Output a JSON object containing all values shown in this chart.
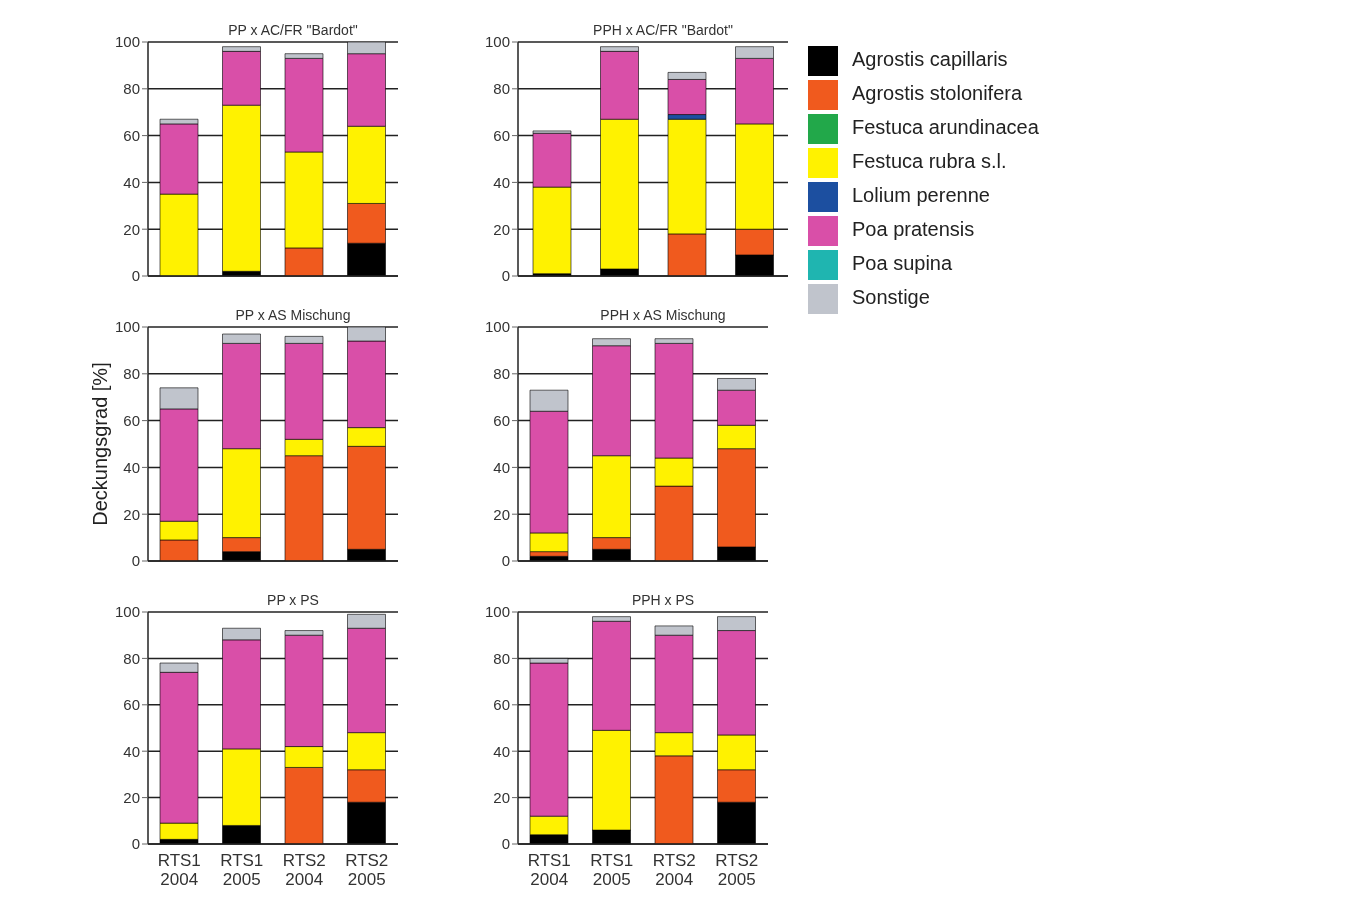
{
  "chart_data": [
    {
      "type": "bar",
      "stacked": true,
      "title": "PP x AC/FR \"Bardot\"",
      "categories": [
        null,
        null,
        null,
        null
      ],
      "ylim": [
        0,
        100
      ],
      "yticks": [
        0,
        20,
        40,
        60,
        80,
        100
      ],
      "grid": "y",
      "tick_labels": "y",
      "legend": false,
      "series": [
        {
          "color": "#000000",
          "values": [
            0,
            2,
            0,
            14
          ]
        },
        {
          "color": "#f05a1e",
          "values": [
            0,
            0,
            12,
            17
          ]
        },
        {
          "color": "#fff200",
          "values": [
            35,
            71,
            41,
            33
          ]
        },
        {
          "color": "#d94fa8",
          "values": [
            30,
            23,
            40,
            31
          ]
        },
        {
          "color": "#c0c4cc",
          "values": [
            2,
            2,
            2,
            5
          ]
        }
      ]
    },
    {
      "type": "bar",
      "stacked": true,
      "title": "PPH x AC/FR \"Bardot\"",
      "categories": [
        null,
        null,
        null,
        null
      ],
      "ylim": [
        0,
        100
      ],
      "yticks": [
        0,
        20,
        40,
        60,
        80,
        100
      ],
      "grid": "y",
      "tick_labels": "y",
      "legend": "right",
      "series": [
        {
          "name": "Agrostis capillaris",
          "color": "#000000",
          "values": [
            1,
            3,
            0,
            9
          ]
        },
        {
          "name": "Agrostis stolonifera",
          "color": "#f05a1e",
          "values": [
            0,
            0,
            18,
            11
          ]
        },
        {
          "name": "Festuca arundinacea",
          "color": "#22a84a",
          "values": [
            0,
            0,
            0,
            0
          ]
        },
        {
          "name": "Festuca rubra s.l.",
          "color": "#fff200",
          "values": [
            37,
            64,
            49,
            45
          ]
        },
        {
          "name": "Lolium perenne",
          "color": "#1c4fa0",
          "values": [
            0,
            0,
            2,
            0
          ]
        },
        {
          "name": "Poa pratensis",
          "color": "#d94fa8",
          "values": [
            23,
            29,
            15,
            28
          ]
        },
        {
          "name": "Poa supina",
          "color": "#1fb5b0",
          "values": [
            0,
            0,
            0,
            0
          ]
        },
        {
          "name": "Sonstige",
          "color": "#c0c4cc",
          "values": [
            1,
            2,
            3,
            5
          ]
        }
      ]
    },
    {
      "type": "bar",
      "stacked": true,
      "title": "PP x AS Mischung",
      "ylabel": "Deckungsgrad [%]",
      "categories": [
        null,
        null,
        null,
        null
      ],
      "ylim": [
        0,
        100
      ],
      "yticks": [
        0,
        20,
        40,
        60,
        80,
        100
      ],
      "grid": "y",
      "tick_labels": "y",
      "legend": false,
      "series": [
        {
          "color": "#000000",
          "values": [
            0,
            4,
            0,
            5
          ]
        },
        {
          "color": "#f05a1e",
          "values": [
            9,
            6,
            45,
            44
          ]
        },
        {
          "color": "#fff200",
          "values": [
            8,
            38,
            7,
            8
          ]
        },
        {
          "color": "#d94fa8",
          "values": [
            48,
            45,
            41,
            37
          ]
        },
        {
          "color": "#c0c4cc",
          "values": [
            9,
            4,
            3,
            6
          ]
        }
      ]
    },
    {
      "type": "bar",
      "stacked": true,
      "title": "PPH x AS Mischung",
      "categories": [
        null,
        null,
        null,
        null
      ],
      "ylim": [
        0,
        100
      ],
      "yticks": [
        0,
        20,
        40,
        60,
        80,
        100
      ],
      "grid": "y",
      "tick_labels": "y",
      "legend": false,
      "series": [
        {
          "color": "#000000",
          "values": [
            2,
            5,
            0,
            6
          ]
        },
        {
          "color": "#f05a1e",
          "values": [
            2,
            5,
            32,
            42
          ]
        },
        {
          "color": "#fff200",
          "values": [
            8,
            35,
            12,
            10
          ]
        },
        {
          "color": "#d94fa8",
          "values": [
            52,
            47,
            49,
            15
          ]
        },
        {
          "color": "#c0c4cc",
          "values": [
            9,
            3,
            2,
            5
          ]
        }
      ]
    },
    {
      "type": "bar",
      "stacked": true,
      "title": "PP x PS",
      "categories": [
        "RTS1 2004",
        "RTS1 2005",
        "RTS2 2004",
        "RTS2 2005"
      ],
      "ylim": [
        0,
        100
      ],
      "yticks": [
        0,
        20,
        40,
        60,
        80,
        100
      ],
      "grid": "y",
      "legend": false,
      "series": [
        {
          "color": "#000000",
          "values": [
            2,
            8,
            0,
            18
          ]
        },
        {
          "color": "#f05a1e",
          "values": [
            0,
            0,
            33,
            14
          ]
        },
        {
          "color": "#fff200",
          "values": [
            7,
            33,
            9,
            16
          ]
        },
        {
          "color": "#d94fa8",
          "values": [
            65,
            47,
            48,
            45
          ]
        },
        {
          "color": "#c0c4cc",
          "values": [
            4,
            5,
            2,
            6
          ]
        }
      ]
    },
    {
      "type": "bar",
      "stacked": true,
      "title": "PPH x PS",
      "categories": [
        "RTS1 2004",
        "RTS1 2005",
        "RTS2 2004",
        "RTS2 2005"
      ],
      "ylim": [
        0,
        100
      ],
      "yticks": [
        0,
        20,
        40,
        60,
        80,
        100
      ],
      "grid": "y",
      "legend": false,
      "series": [
        {
          "color": "#000000",
          "values": [
            4,
            6,
            0,
            18
          ]
        },
        {
          "color": "#f05a1e",
          "values": [
            0,
            0,
            38,
            14
          ]
        },
        {
          "color": "#fff200",
          "values": [
            8,
            43,
            10,
            15
          ]
        },
        {
          "color": "#d94fa8",
          "values": [
            66,
            47,
            42,
            45
          ]
        },
        {
          "color": "#c0c4cc",
          "values": [
            2,
            2,
            4,
            6
          ]
        }
      ]
    }
  ]
}
